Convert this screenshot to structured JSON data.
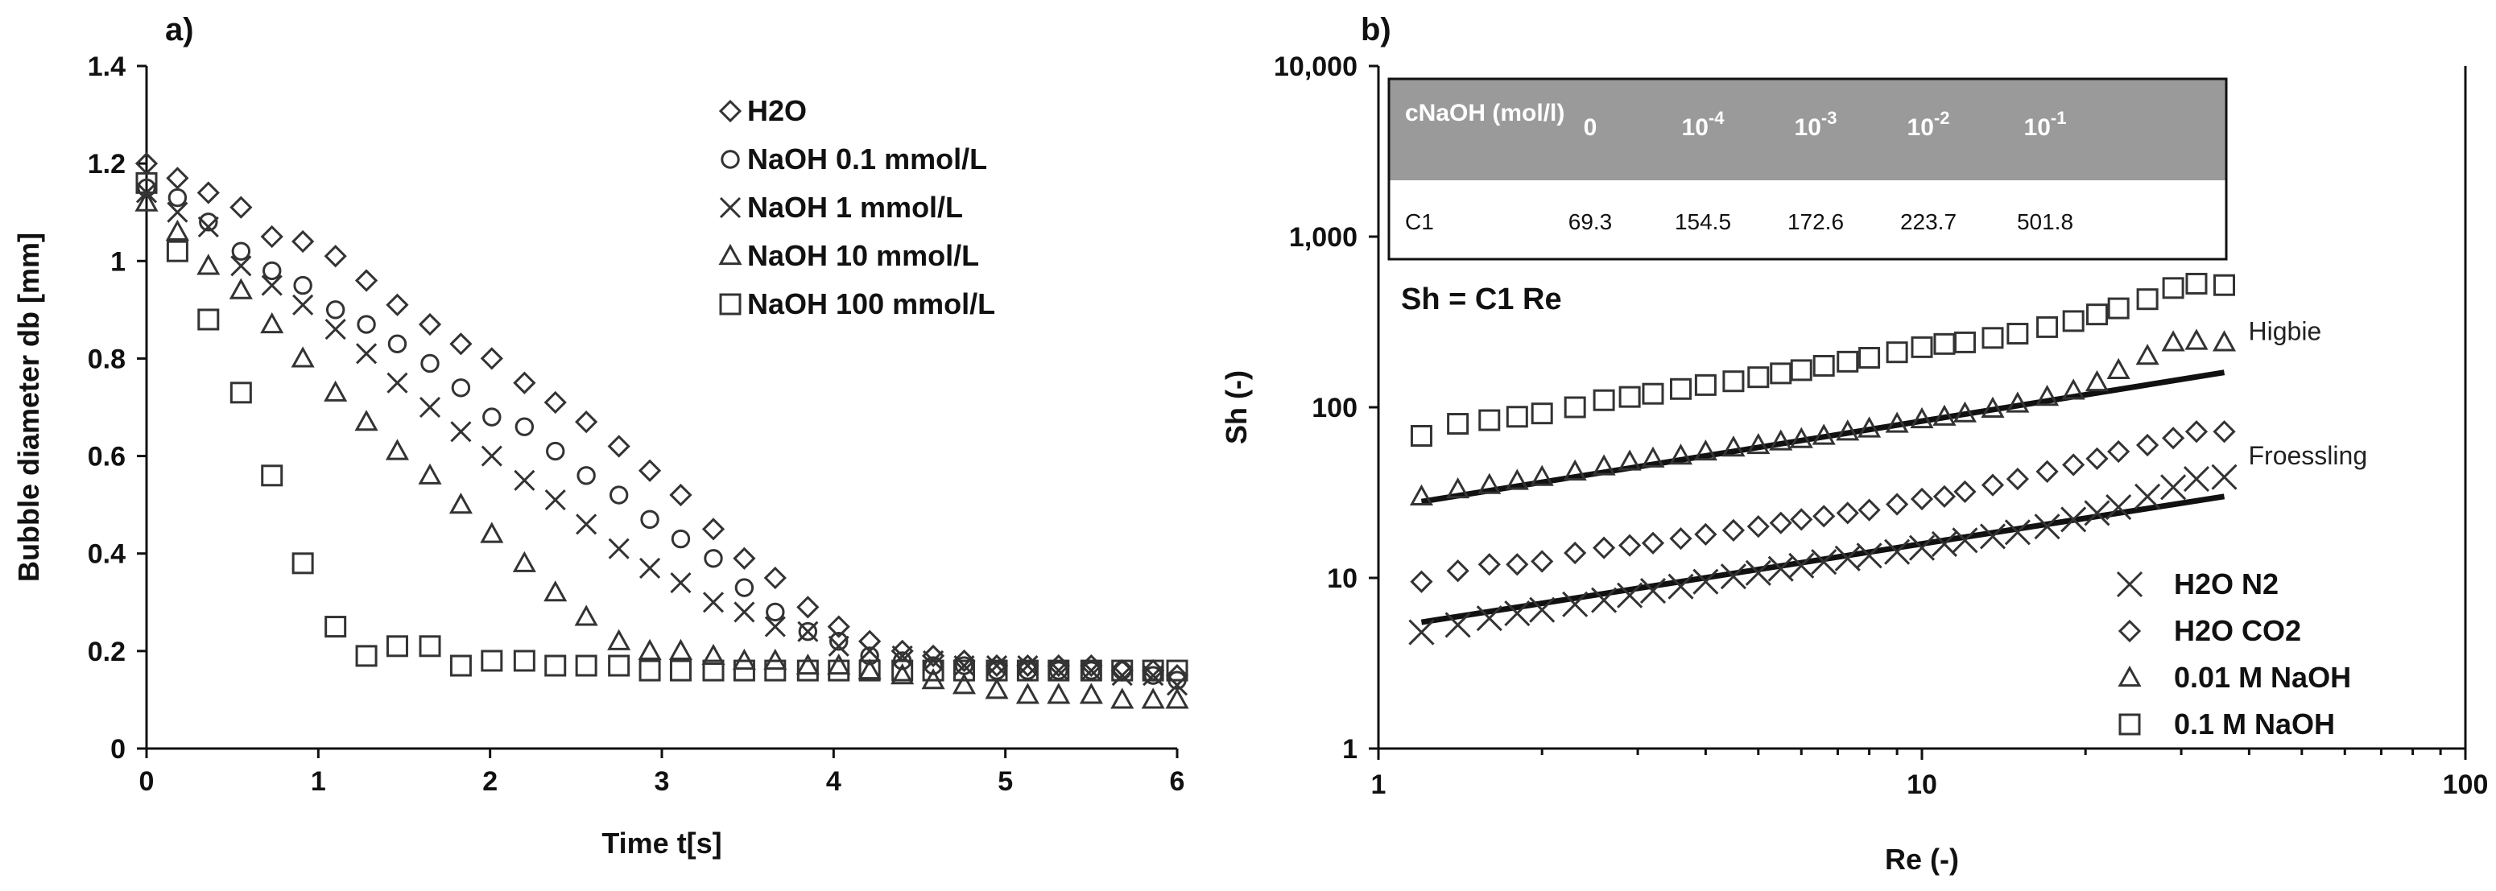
{
  "chart_data": [
    {
      "panel": "a)",
      "type": "scatter",
      "xlabel": "Time t[s]",
      "ylabel": "Bubble diameter db [mm]",
      "xlim": [
        0,
        6
      ],
      "ylim": [
        0,
        1.4
      ],
      "xticks": [
        "0",
        "1",
        "2",
        "3",
        "4",
        "5",
        "6"
      ],
      "yticks": [
        "0",
        "0.2",
        "0.4",
        "0.6",
        "0.8",
        "1",
        "1.2",
        "1.4"
      ],
      "legend": "top-right",
      "series": [
        {
          "name": "H2O",
          "marker": "diamond",
          "x": [
            0,
            0.18,
            0.36,
            0.55,
            0.73,
            0.91,
            1.1,
            1.28,
            1.46,
            1.65,
            1.83,
            2.01,
            2.2,
            2.38,
            2.56,
            2.75,
            2.93,
            3.11,
            3.3,
            3.48,
            3.66,
            3.85,
            4.03,
            4.21,
            4.4,
            4.58,
            4.76,
            4.95,
            5.13,
            5.31,
            5.5,
            5.68,
            5.86,
            6.0
          ],
          "y": [
            1.2,
            1.17,
            1.14,
            1.11,
            1.05,
            1.04,
            1.01,
            0.96,
            0.91,
            0.87,
            0.83,
            0.8,
            0.75,
            0.71,
            0.67,
            0.62,
            0.57,
            0.52,
            0.45,
            0.39,
            0.35,
            0.29,
            0.25,
            0.22,
            0.2,
            0.19,
            0.18,
            0.17,
            0.17,
            0.17,
            0.17,
            0.16,
            0.16,
            0.15
          ]
        },
        {
          "name": "NaOH 0.1 mmol/L",
          "marker": "circle",
          "x": [
            0,
            0.18,
            0.36,
            0.55,
            0.73,
            0.91,
            1.1,
            1.28,
            1.46,
            1.65,
            1.83,
            2.01,
            2.2,
            2.38,
            2.56,
            2.75,
            2.93,
            3.11,
            3.3,
            3.48,
            3.66,
            3.85,
            4.03,
            4.21,
            4.4,
            4.58,
            4.76,
            4.95,
            5.13,
            5.31,
            5.5,
            5.68,
            5.86,
            6.0
          ],
          "y": [
            1.15,
            1.13,
            1.08,
            1.02,
            0.98,
            0.95,
            0.9,
            0.87,
            0.83,
            0.79,
            0.74,
            0.68,
            0.66,
            0.61,
            0.56,
            0.52,
            0.47,
            0.43,
            0.39,
            0.33,
            0.28,
            0.24,
            0.22,
            0.19,
            0.18,
            0.17,
            0.17,
            0.16,
            0.16,
            0.16,
            0.16,
            0.16,
            0.15,
            0.14
          ]
        },
        {
          "name": "NaOH 1 mmol/L",
          "marker": "x",
          "x": [
            0,
            0.18,
            0.36,
            0.55,
            0.73,
            0.91,
            1.1,
            1.28,
            1.46,
            1.65,
            1.83,
            2.01,
            2.2,
            2.38,
            2.56,
            2.75,
            2.93,
            3.11,
            3.3,
            3.48,
            3.66,
            3.85,
            4.03,
            4.21,
            4.4,
            4.58,
            4.76,
            4.95,
            5.13,
            5.31,
            5.5,
            5.68,
            5.86,
            6.0
          ],
          "y": [
            1.14,
            1.1,
            1.07,
            0.99,
            0.95,
            0.91,
            0.86,
            0.81,
            0.75,
            0.7,
            0.65,
            0.6,
            0.55,
            0.51,
            0.46,
            0.41,
            0.37,
            0.34,
            0.3,
            0.28,
            0.25,
            0.24,
            0.21,
            0.2,
            0.19,
            0.18,
            0.17,
            0.17,
            0.17,
            0.16,
            0.16,
            0.15,
            0.15,
            0.13
          ]
        },
        {
          "name": "NaOH 10 mmol/L",
          "marker": "triangle",
          "x": [
            0,
            0.18,
            0.36,
            0.55,
            0.73,
            0.91,
            1.1,
            1.28,
            1.46,
            1.65,
            1.83,
            2.01,
            2.2,
            2.38,
            2.56,
            2.75,
            2.93,
            3.11,
            3.3,
            3.48,
            3.66,
            3.85,
            4.03,
            4.21,
            4.4,
            4.58,
            4.76,
            4.95,
            5.13,
            5.31,
            5.5,
            5.68,
            5.86,
            6.0
          ],
          "y": [
            1.12,
            1.06,
            0.99,
            0.94,
            0.87,
            0.8,
            0.73,
            0.67,
            0.61,
            0.56,
            0.5,
            0.44,
            0.38,
            0.32,
            0.27,
            0.22,
            0.2,
            0.2,
            0.19,
            0.18,
            0.18,
            0.17,
            0.17,
            0.16,
            0.15,
            0.14,
            0.13,
            0.12,
            0.11,
            0.11,
            0.11,
            0.1,
            0.1,
            0.1
          ]
        },
        {
          "name": "NaOH 100 mmol/L",
          "marker": "square",
          "x": [
            0,
            0.18,
            0.36,
            0.55,
            0.73,
            0.91,
            1.1,
            1.28,
            1.46,
            1.65,
            1.83,
            2.01,
            2.2,
            2.38,
            2.56,
            2.75,
            2.93,
            3.11,
            3.3,
            3.48,
            3.66,
            3.85,
            4.03,
            4.21,
            4.4,
            4.58,
            4.76,
            4.95,
            5.13,
            5.31,
            5.5,
            5.68,
            5.86,
            6.0
          ],
          "y": [
            1.16,
            1.02,
            0.88,
            0.73,
            0.56,
            0.38,
            0.25,
            0.19,
            0.21,
            0.21,
            0.17,
            0.18,
            0.18,
            0.17,
            0.17,
            0.17,
            0.16,
            0.16,
            0.16,
            0.16,
            0.16,
            0.16,
            0.16,
            0.16,
            0.16,
            0.16,
            0.16,
            0.16,
            0.16,
            0.16,
            0.16,
            0.16,
            0.16,
            0.16
          ]
        }
      ]
    },
    {
      "panel": "b)",
      "type": "scatter",
      "xscale": "log",
      "yscale": "log",
      "xlabel": "Re (-)",
      "ylabel": "Sh (-)",
      "xlim": [
        1,
        100
      ],
      "ylim": [
        1,
        10000
      ],
      "xticks": [
        "1",
        "10",
        "100"
      ],
      "yticks": [
        "1",
        "10",
        "100",
        "1,000",
        "10,000"
      ],
      "legend": "bottom-right",
      "equation": "Sh = C1 Re",
      "fit_lines": [
        {
          "name": "Higbie",
          "x": [
            1.2,
            36
          ],
          "y": [
            28,
            160
          ]
        },
        {
          "name": "Froessling",
          "x": [
            1.2,
            36
          ],
          "y": [
            5.5,
            30
          ]
        }
      ],
      "table": {
        "header_label": "cNaOH (mol/l)",
        "concentrations": [
          "0",
          "10-4",
          "10-3",
          "10-2",
          "10-1"
        ],
        "row_label": "C1",
        "c1_values": [
          "69.3",
          "154.5",
          "172.6",
          "223.7",
          "501.8"
        ]
      },
      "series": [
        {
          "name": "H2O N2",
          "marker": "x",
          "x": [
            1.2,
            1.4,
            1.6,
            1.8,
            2.0,
            2.3,
            2.6,
            2.9,
            3.2,
            3.6,
            4.0,
            4.5,
            5.0,
            5.5,
            6.0,
            6.6,
            7.3,
            8.0,
            9.0,
            10,
            11,
            12,
            13.5,
            15,
            17,
            19,
            21,
            23,
            26,
            29,
            32,
            36
          ],
          "y": [
            4.8,
            5.3,
            5.8,
            6.2,
            6.5,
            7.0,
            7.4,
            7.9,
            8.4,
            8.9,
            9.5,
            10.2,
            10.7,
            11.3,
            11.8,
            12.4,
            13.0,
            13.5,
            14.2,
            15.0,
            15.8,
            16.6,
            17.5,
            18.5,
            20,
            22,
            24,
            26,
            30,
            34,
            38,
            39
          ]
        },
        {
          "name": "H2O CO2",
          "marker": "diamond",
          "x": [
            1.2,
            1.4,
            1.6,
            1.8,
            2.0,
            2.3,
            2.6,
            2.9,
            3.2,
            3.6,
            4.0,
            4.5,
            5.0,
            5.5,
            6.0,
            6.6,
            7.3,
            8.0,
            9.0,
            10,
            11,
            12,
            13.5,
            15,
            17,
            19,
            21,
            23,
            26,
            29,
            32,
            36
          ],
          "y": [
            9.5,
            11,
            12,
            12,
            12.5,
            14,
            15,
            15.5,
            16,
            17,
            18,
            19,
            20,
            21,
            22,
            23,
            24,
            25,
            27,
            29,
            30,
            32,
            35,
            38,
            42,
            46,
            50,
            55,
            60,
            66,
            72,
            72
          ]
        },
        {
          "name": "0.01 M NaOH",
          "marker": "triangle",
          "x": [
            1.2,
            1.4,
            1.6,
            1.8,
            2.0,
            2.3,
            2.6,
            2.9,
            3.2,
            3.6,
            4.0,
            4.5,
            5.0,
            5.5,
            6.0,
            6.6,
            7.3,
            8.0,
            9.0,
            10,
            11,
            12,
            13.5,
            15,
            17,
            19,
            21,
            23,
            26,
            29,
            32,
            36
          ],
          "y": [
            30,
            33,
            35,
            37,
            39,
            42,
            45,
            48,
            50,
            52,
            55,
            58,
            60,
            63,
            65,
            68,
            72,
            75,
            80,
            85,
            88,
            92,
            98,
            105,
            115,
            125,
            140,
            165,
            200,
            240,
            245,
            240
          ]
        },
        {
          "name": "0.1 M NaOH",
          "marker": "square",
          "x": [
            1.2,
            1.4,
            1.6,
            1.8,
            2.0,
            2.3,
            2.6,
            2.9,
            3.2,
            3.6,
            4.0,
            4.5,
            5.0,
            5.5,
            6.0,
            6.6,
            7.3,
            8.0,
            9.0,
            10,
            11,
            12,
            13.5,
            15,
            17,
            19,
            21,
            23,
            26,
            29,
            32,
            36
          ],
          "y": [
            68,
            80,
            84,
            88,
            92,
            100,
            110,
            115,
            120,
            128,
            135,
            142,
            150,
            158,
            165,
            175,
            185,
            195,
            210,
            225,
            235,
            240,
            255,
            270,
            295,
            320,
            350,
            380,
            430,
            500,
            530,
            520
          ]
        }
      ]
    }
  ]
}
